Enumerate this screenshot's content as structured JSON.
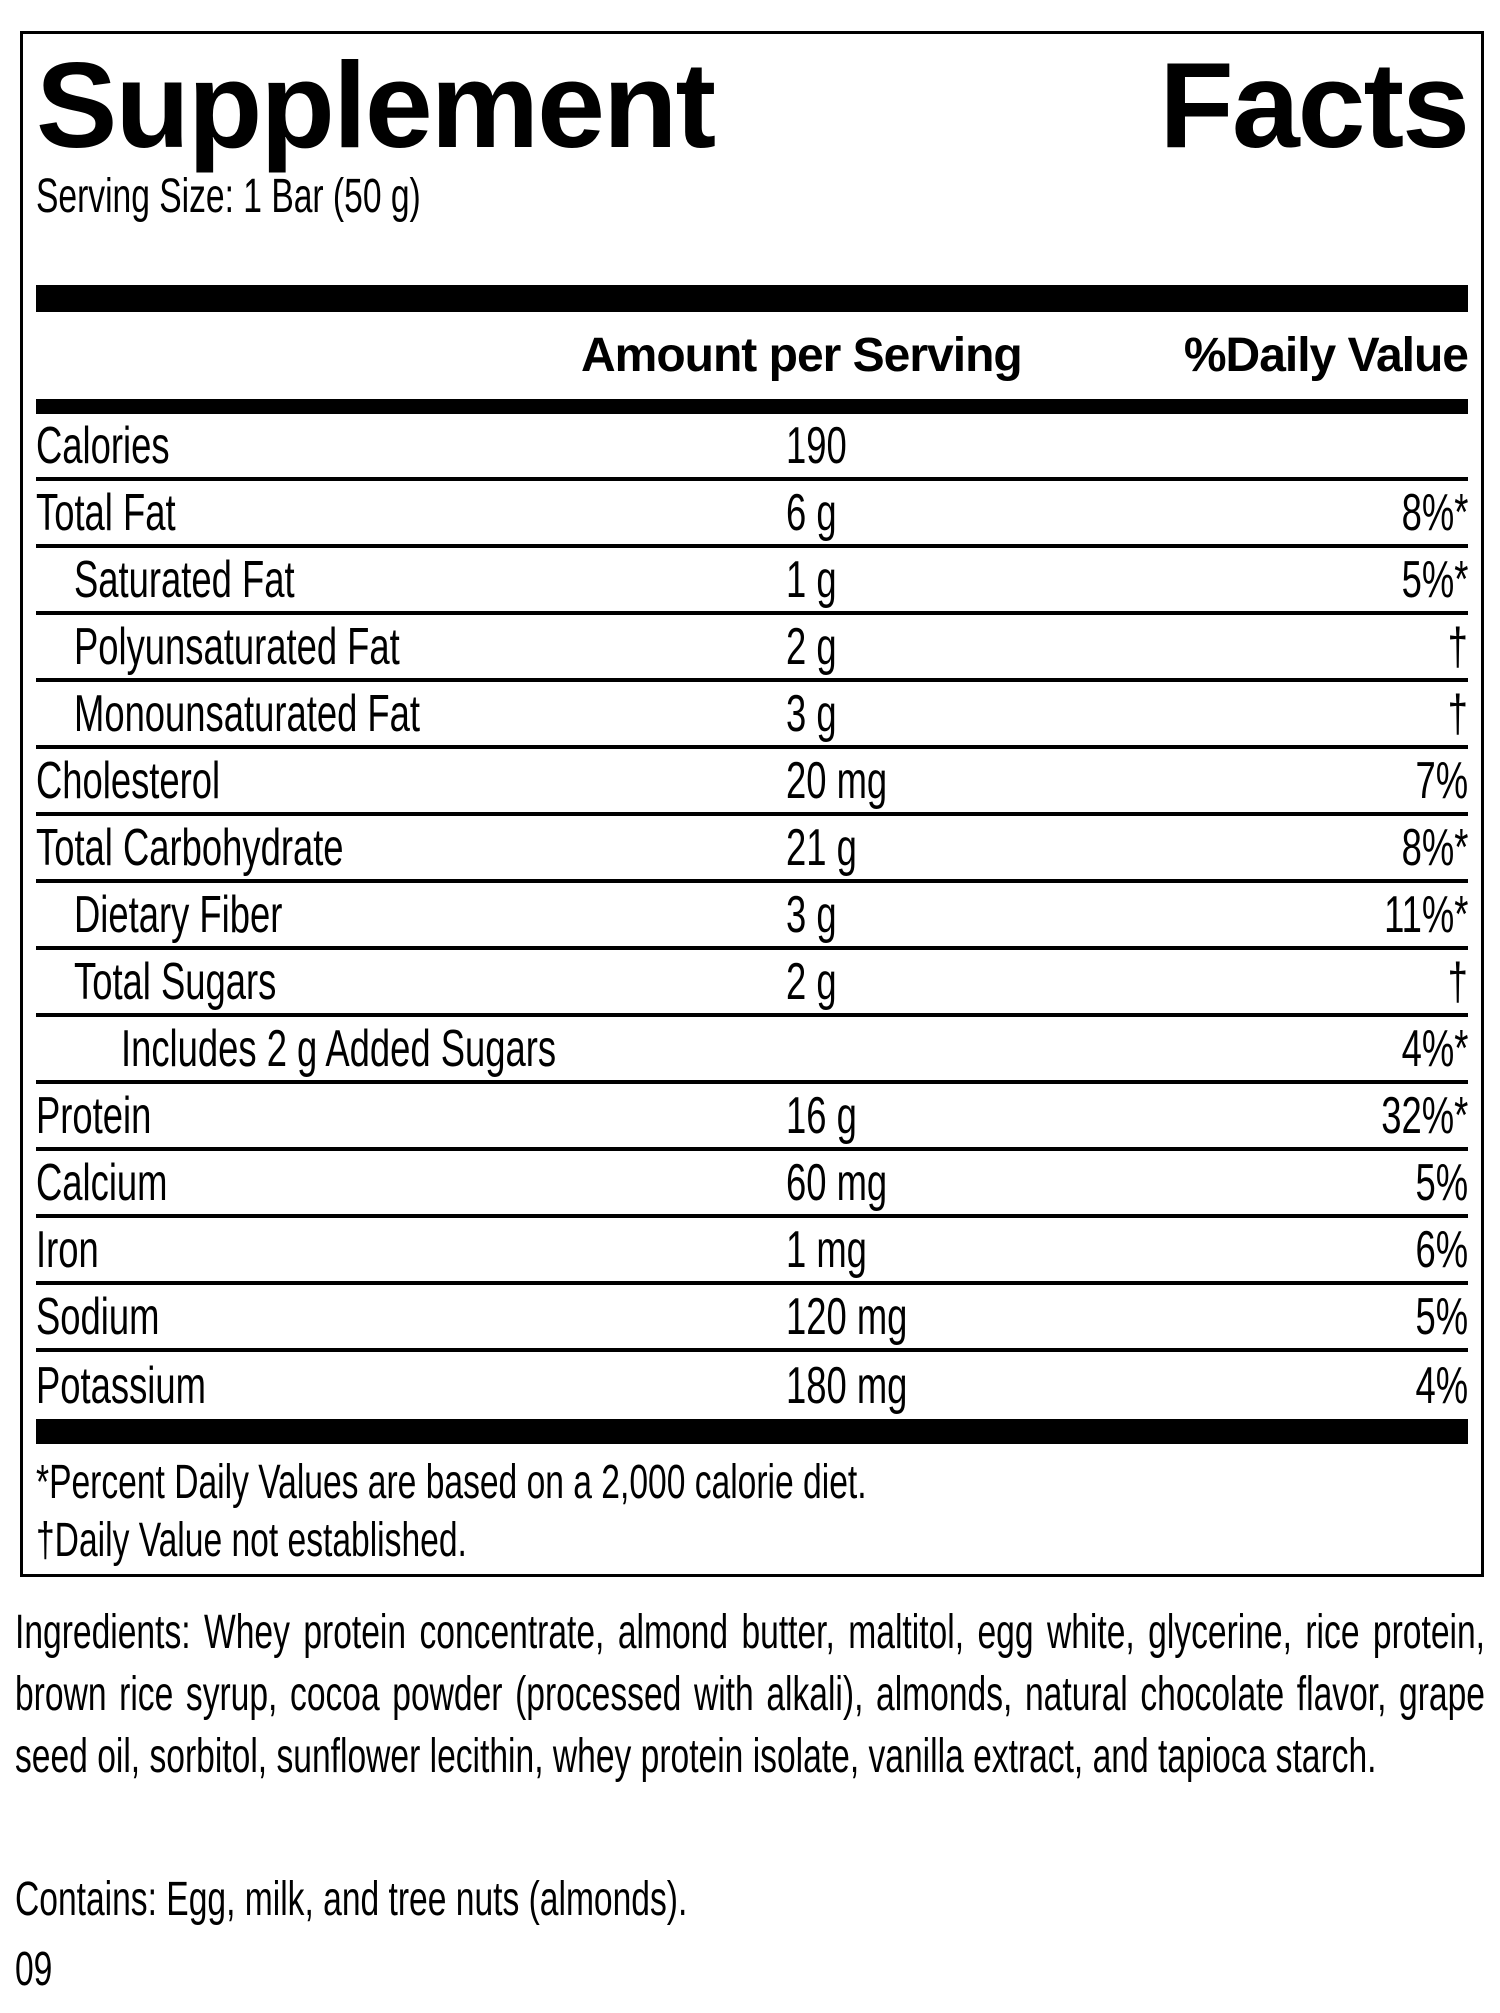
{
  "label": {
    "title_words": [
      "Supplement",
      "Facts"
    ],
    "serving_size": "Serving Size: 1 Bar (50 g)",
    "header": {
      "amount": "Amount per Serving",
      "daily_value": "%Daily Value"
    },
    "rows": [
      {
        "name": "Calories",
        "amount": "190",
        "dv": "",
        "indent": 0
      },
      {
        "name": "Total Fat",
        "amount": "6 g",
        "dv": "8%*",
        "indent": 0
      },
      {
        "name": "Saturated Fat",
        "amount": "1 g",
        "dv": "5%*",
        "indent": 1
      },
      {
        "name": "Polyunsaturated Fat",
        "amount": "2 g",
        "dv": "†",
        "indent": 1
      },
      {
        "name": "Monounsaturated Fat",
        "amount": "3 g",
        "dv": "†",
        "indent": 1
      },
      {
        "name": "Cholesterol",
        "amount": "20 mg",
        "dv": "7%",
        "indent": 0
      },
      {
        "name": "Total Carbohydrate",
        "amount": "21 g",
        "dv": "8%*",
        "indent": 0
      },
      {
        "name": "Dietary Fiber",
        "amount": "3 g",
        "dv": "11%*",
        "indent": 1
      },
      {
        "name": "Total Sugars",
        "amount": "2 g",
        "dv": "†",
        "indent": 1
      },
      {
        "name": "Includes 2 g Added Sugars",
        "amount": "",
        "dv": "4%*",
        "indent": 2
      },
      {
        "name": "Protein",
        "amount": "16 g",
        "dv": "32%*",
        "indent": 0
      },
      {
        "name": "Calcium",
        "amount": "60 mg",
        "dv": "5%",
        "indent": 0
      },
      {
        "name": "Iron",
        "amount": "1 mg",
        "dv": "6%",
        "indent": 0
      },
      {
        "name": "Sodium",
        "amount": "120 mg",
        "dv": "5%",
        "indent": 0
      },
      {
        "name": "Potassium",
        "amount": "180 mg",
        "dv": "4%",
        "indent": 0
      }
    ],
    "footnotes": [
      "*Percent Daily Values are based on a 2,000 calorie diet.",
      "†Daily Value not established."
    ]
  },
  "ingredients": "Ingredients: Whey protein concentrate, almond butter, maltitol, egg white, glycerine, rice protein, brown rice syrup, cocoa powder (processed with alkali), almonds, natural chocolate flavor, grape seed oil, sorbitol, sunflower lecithin, whey protein isolate, vanilla extract, and tapioca starch.",
  "contains": "Contains: Egg, milk, and tree nuts (almonds).",
  "code": "09",
  "colors": {
    "ink": "#000000",
    "background": "#ffffff"
  }
}
